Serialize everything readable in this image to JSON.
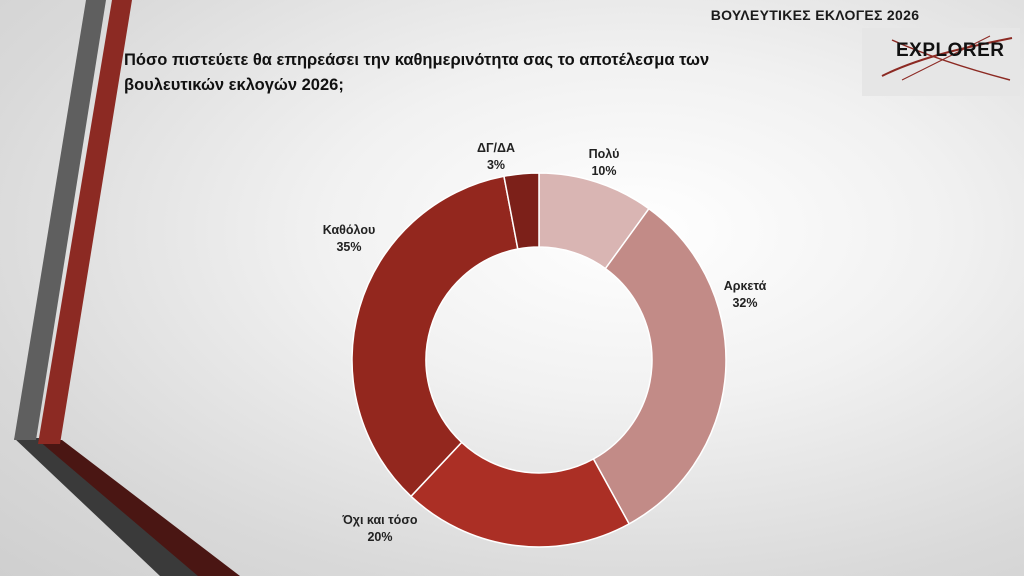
{
  "header": {
    "title": "ΒΟΥΛΕΥΤΙΚΕΣ ΕΚΛΟΓΕΣ 2026"
  },
  "logo": {
    "text": "EXPLORER",
    "accent_color": "#8c2a23"
  },
  "question": "Πόσο πιστεύετε θα επηρεάσει την καθημερινότητα σας το αποτέλεσμα των βουλευτικών εκλογών 2026;",
  "chart_data": {
    "type": "pie",
    "style": "donut",
    "title": "",
    "slices": [
      {
        "label": "Πολύ",
        "value": 10,
        "display": "10%",
        "color": "#d9b5b3"
      },
      {
        "label": "Αρκετά",
        "value": 32,
        "display": "32%",
        "color": "#c28b87"
      },
      {
        "label": "Όχι και τόσο",
        "value": 20,
        "display": "20%",
        "color": "#ab2f25"
      },
      {
        "label": "Καθόλου",
        "value": 35,
        "display": "35%",
        "color": "#93271e"
      },
      {
        "label": "ΔΓ/ΔΑ",
        "value": 3,
        "display": "3%",
        "color": "#7c2019"
      }
    ]
  }
}
